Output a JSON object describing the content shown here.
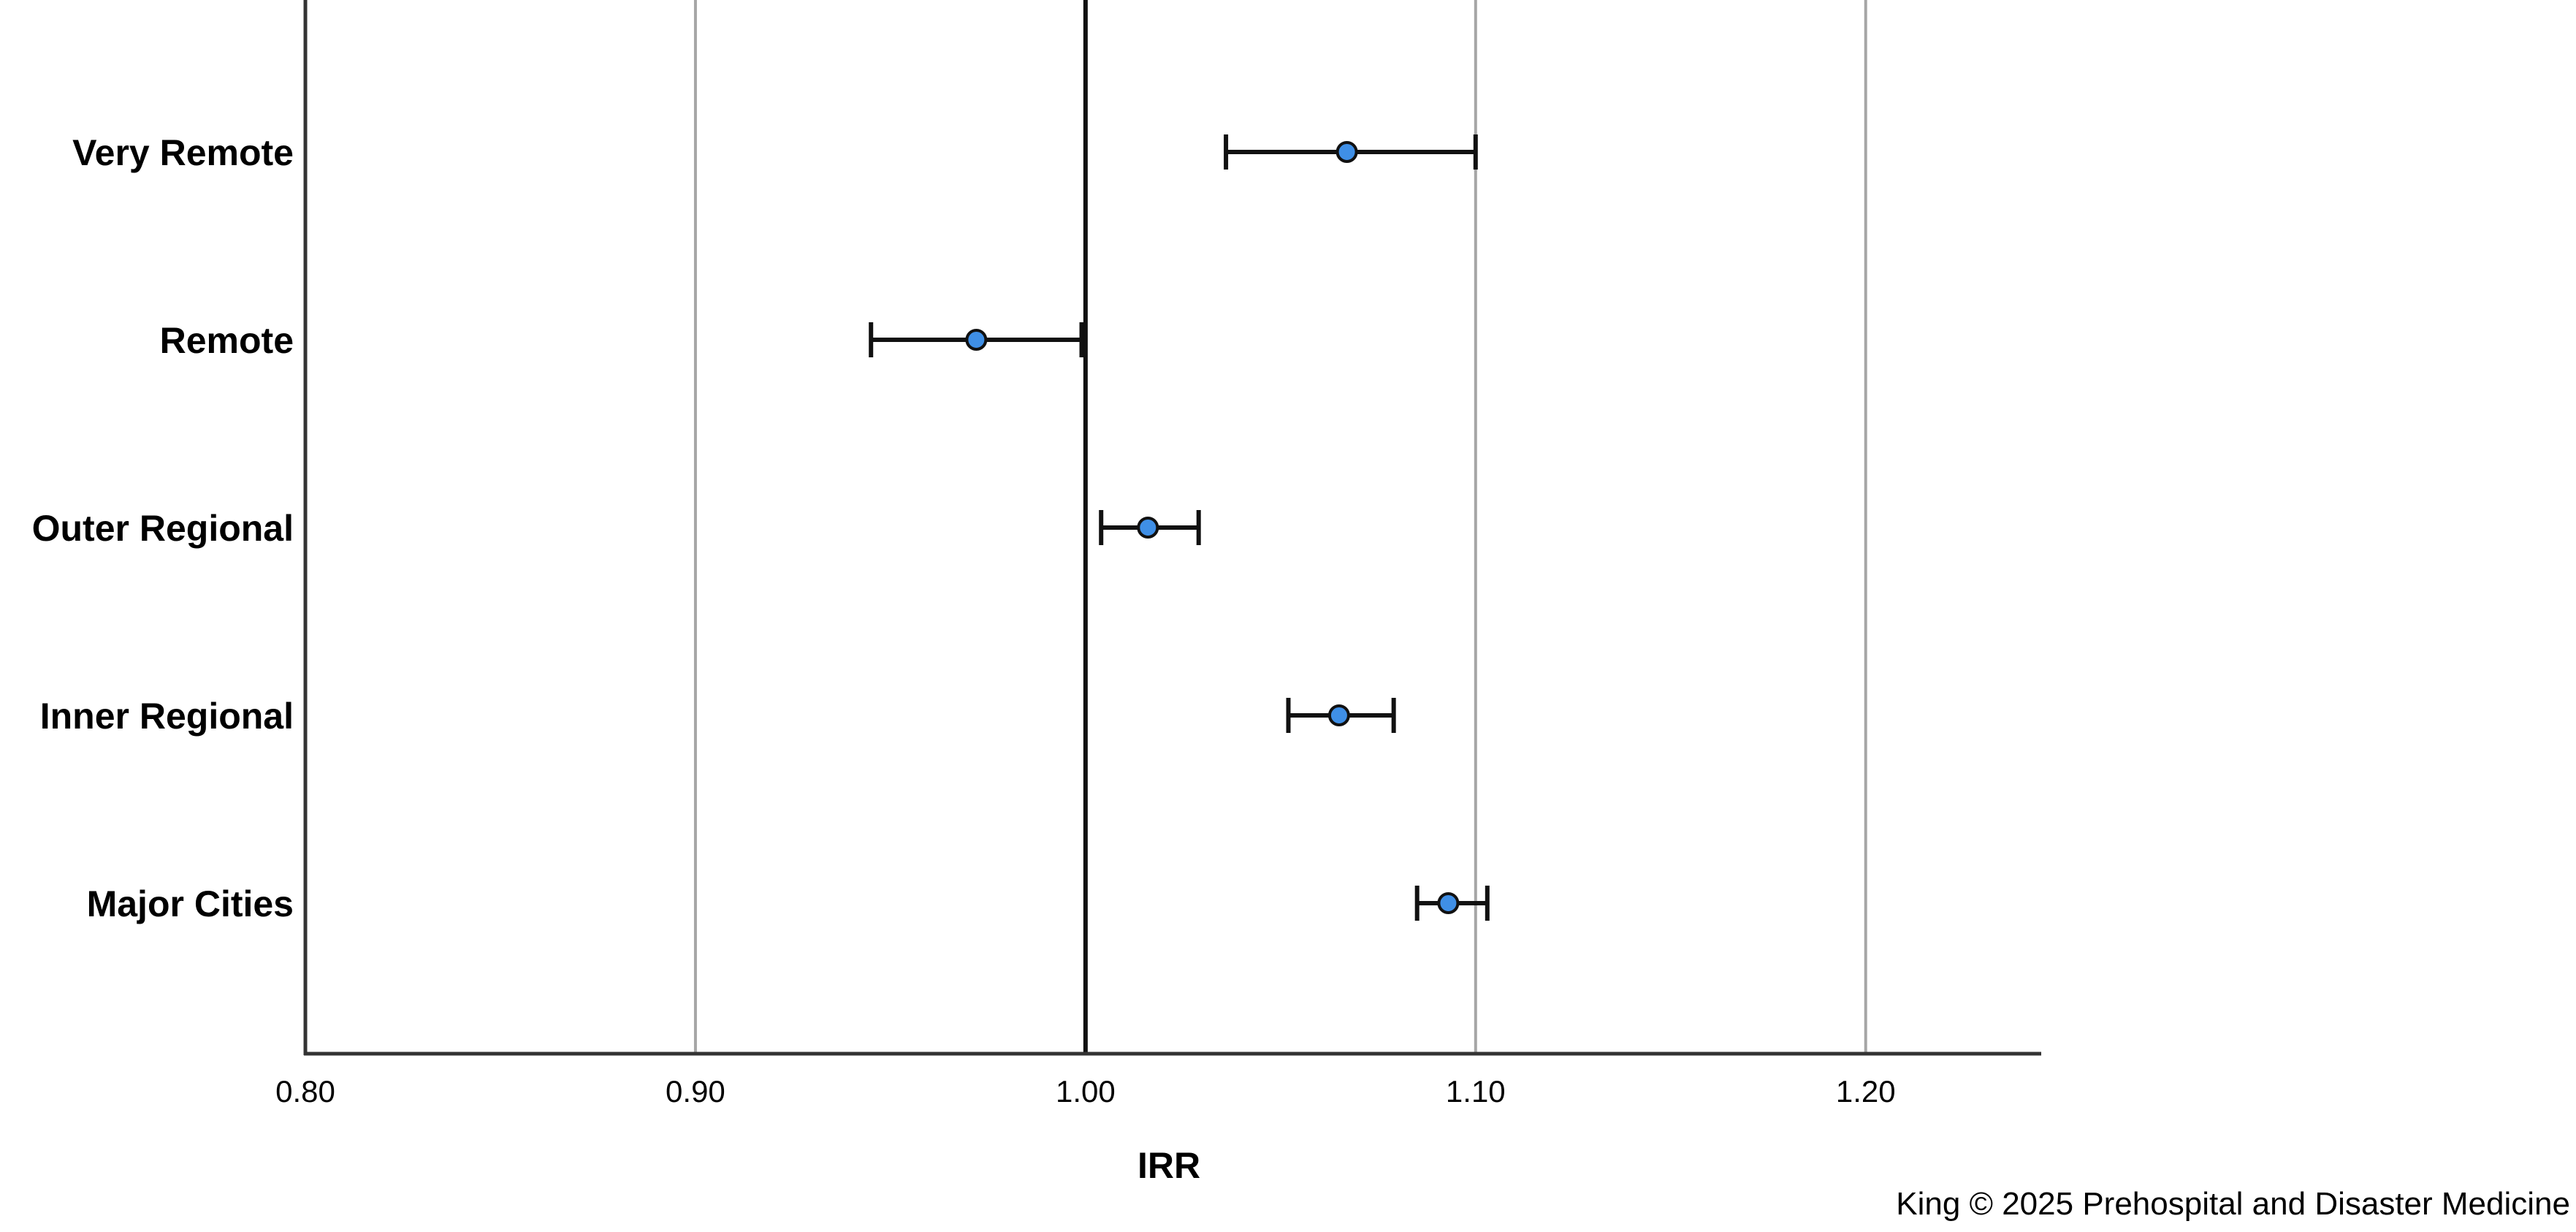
{
  "chart_data": {
    "type": "forest",
    "title": "",
    "xlabel": "IRR",
    "ylabel": "",
    "xlim": [
      0.8,
      1.245
    ],
    "x_ticks": [
      0.8,
      0.9,
      1.0,
      1.1,
      1.2
    ],
    "x_tick_labels": [
      "0.80",
      "0.90",
      "1.00",
      "1.10",
      "1.20"
    ],
    "reference_line": 1.0,
    "grid": "vertical",
    "categories": [
      "Very Remote",
      "Remote",
      "Outer Regional",
      "Inner Regional",
      "Major Cities"
    ],
    "estimates": [
      1.067,
      0.972,
      1.016,
      1.065,
      1.093
    ],
    "ci_lower": [
      1.036,
      0.945,
      1.004,
      1.052,
      1.085
    ],
    "ci_upper": [
      1.1,
      0.999,
      1.029,
      1.079,
      1.103
    ],
    "colors": {
      "marker": "#3f8fe6",
      "ci": "#111111",
      "gridline": "#a6a6a6",
      "reference": "#111111"
    }
  },
  "credit": "King © 2025 Prehospital and Disaster Medicine"
}
